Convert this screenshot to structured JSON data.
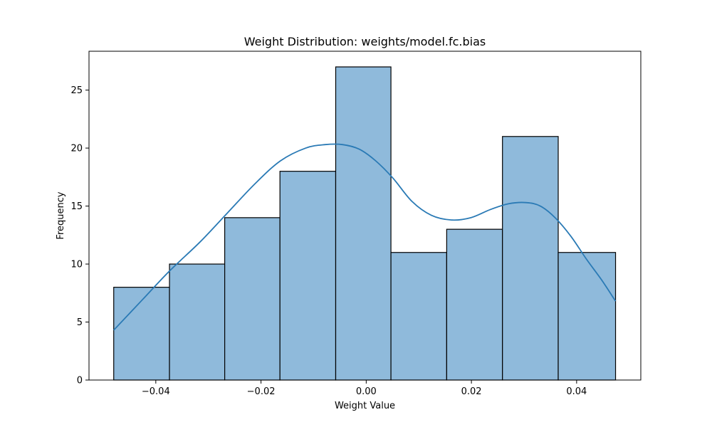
{
  "chart_data": {
    "type": "bar",
    "title": "Weight Distribution: weights/model.fc.bias",
    "xlabel": "Weight Value",
    "ylabel": "Frequency",
    "xlim": [
      -0.0527,
      0.0522
    ],
    "ylim": [
      0,
      28.35
    ],
    "grid": false,
    "legend": "none",
    "bar_fill": "#8fbadb",
    "bar_edge": "#000000",
    "kde_color": "#2a7ab5",
    "bins": [
      {
        "x0": -0.048,
        "x1": -0.0374,
        "count": 8
      },
      {
        "x0": -0.0374,
        "x1": -0.0269,
        "count": 10
      },
      {
        "x0": -0.0269,
        "x1": -0.0164,
        "count": 14
      },
      {
        "x0": -0.0164,
        "x1": -0.0058,
        "count": 18
      },
      {
        "x0": -0.0058,
        "x1": 0.0047,
        "count": 27
      },
      {
        "x0": 0.0047,
        "x1": 0.0153,
        "count": 11
      },
      {
        "x0": 0.0153,
        "x1": 0.0259,
        "count": 13
      },
      {
        "x0": 0.0259,
        "x1": 0.0365,
        "count": 21
      },
      {
        "x0": 0.0365,
        "x1": 0.0474,
        "count": 11
      }
    ],
    "kde": {
      "x": [
        -0.048,
        -0.0426,
        -0.0374,
        -0.0316,
        -0.0264,
        -0.0212,
        -0.0163,
        -0.0115,
        -0.0078,
        -0.0045,
        -0.0013,
        0.0018,
        0.0051,
        0.0087,
        0.0124,
        0.0162,
        0.0199,
        0.0236,
        0.0271,
        0.0304,
        0.0331,
        0.0359,
        0.0389,
        0.0419,
        0.0448,
        0.0474
      ],
      "y": [
        4.3,
        6.9,
        9.4,
        11.9,
        14.4,
        16.9,
        18.9,
        20.0,
        20.3,
        20.3,
        19.9,
        18.9,
        17.4,
        15.4,
        14.2,
        13.8,
        14.0,
        14.7,
        15.2,
        15.3,
        15.0,
        14.0,
        12.4,
        10.4,
        8.6,
        6.8
      ]
    },
    "x_ticks": [
      {
        "value": -0.04,
        "label": "−0.04"
      },
      {
        "value": -0.02,
        "label": "−0.02"
      },
      {
        "value": 0.0,
        "label": "0.00"
      },
      {
        "value": 0.02,
        "label": "0.02"
      },
      {
        "value": 0.04,
        "label": "0.04"
      }
    ],
    "y_ticks": [
      {
        "value": 0,
        "label": "0"
      },
      {
        "value": 5,
        "label": "5"
      },
      {
        "value": 10,
        "label": "10"
      },
      {
        "value": 15,
        "label": "15"
      },
      {
        "value": 20,
        "label": "20"
      },
      {
        "value": 25,
        "label": "25"
      }
    ]
  }
}
